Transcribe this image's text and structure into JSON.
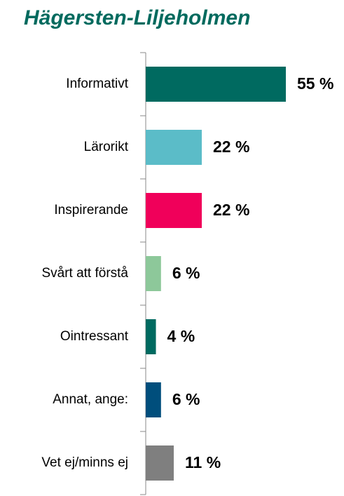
{
  "chart_data": {
    "type": "hbar",
    "title": "Hägersten-Liljeholmen",
    "categories": [
      "Informativt",
      "Lärorikt",
      "Inspirerande",
      "Svårt att förstå",
      "Ointressant",
      "Annat, ange:",
      "Vet ej/minns ej"
    ],
    "values": [
      55,
      22,
      22,
      6,
      4,
      6,
      11
    ],
    "value_labels": [
      "55 %",
      "22 %",
      "22 %",
      "6 %",
      "4 %",
      "6 %",
      "11 %"
    ],
    "colors": [
      "#006a60",
      "#5bbcc8",
      "#f0005a",
      "#8dc89a",
      "#006a60",
      "#004e7c",
      "#7f7f7f"
    ],
    "xlim": [
      0,
      55
    ]
  }
}
